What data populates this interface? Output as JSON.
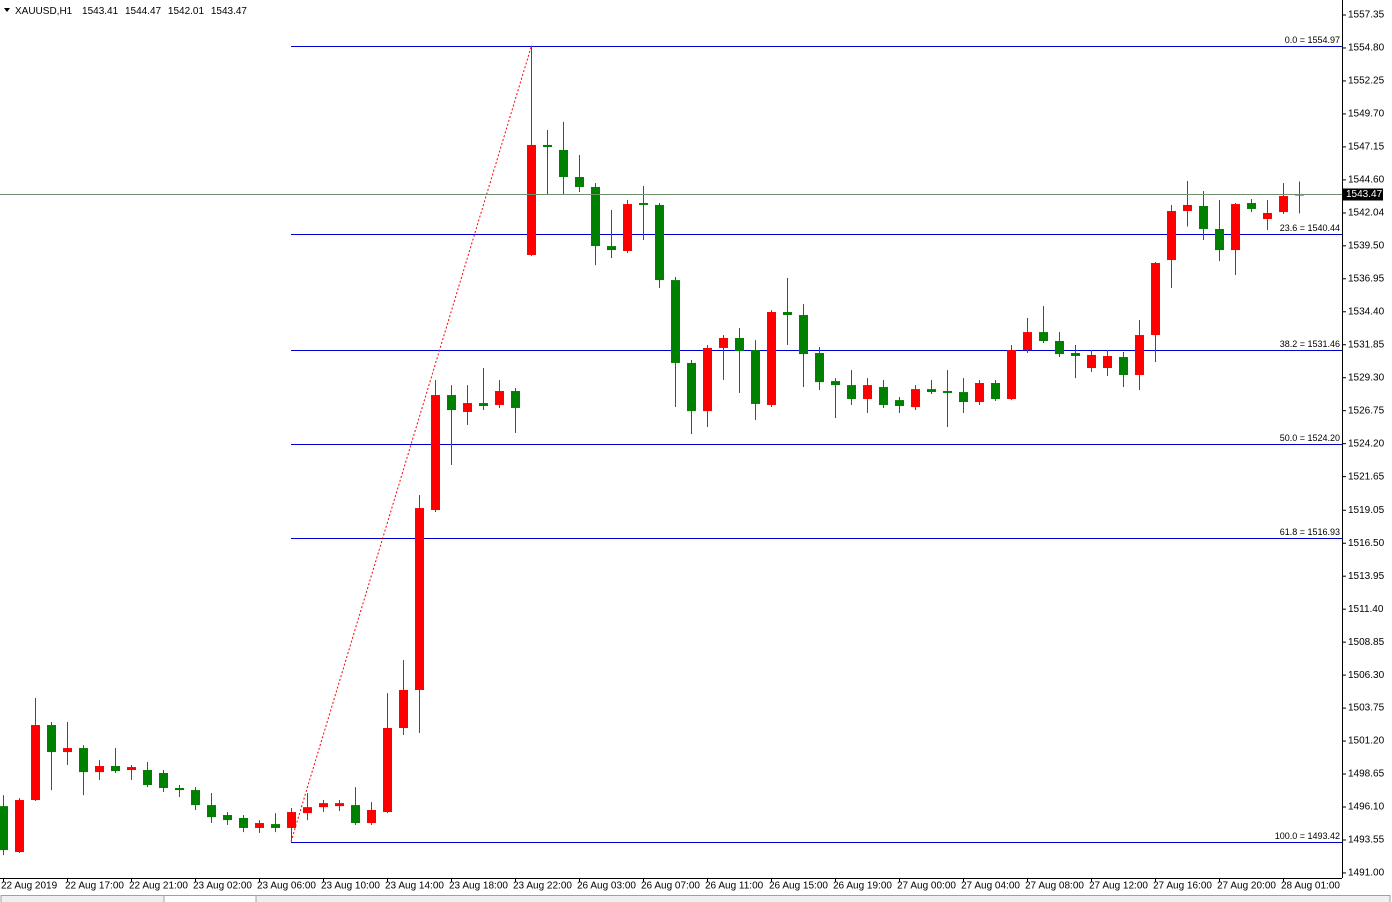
{
  "chart_data": {
    "type": "candlestick",
    "title": "XAUUSD,H1",
    "categories": [
      "22 Aug 2019",
      null,
      null,
      null,
      "22 Aug 17:00",
      null,
      null,
      null,
      "22 Aug 21:00",
      null,
      null,
      null,
      "23 Aug 02:00",
      null,
      null,
      null,
      "23 Aug 06:00",
      null,
      null,
      null,
      "23 Aug 10:00",
      null,
      null,
      null,
      "23 Aug 14:00",
      null,
      null,
      null,
      "23 Aug 18:00",
      null,
      null,
      null,
      "23 Aug 22:00",
      null,
      null,
      null,
      "26 Aug 03:00",
      null,
      null,
      null,
      "26 Aug 07:00",
      null,
      null,
      null,
      "26 Aug 11:00",
      null,
      null,
      null,
      "26 Aug 15:00",
      null,
      null,
      null,
      "26 Aug 19:00",
      null,
      null,
      null,
      "27 Aug 00:00",
      null,
      null,
      null,
      "27 Aug 04:00",
      null,
      null,
      null,
      "27 Aug 08:00",
      null,
      null,
      null,
      "27 Aug 12:00",
      null,
      null,
      null,
      "27 Aug 16:00",
      null,
      null,
      null,
      "27 Aug 20:00",
      null,
      null,
      null,
      "28 Aug 01:00",
      null
    ],
    "open": [
      1496.17,
      1492.62,
      1496.64,
      1502.44,
      1500.35,
      1500.66,
      1498.8,
      1499.27,
      1498.96,
      1498.96,
      1498.73,
      1497.57,
      1497.41,
      1496.25,
      1495.48,
      1495.25,
      1494.48,
      1494.78,
      1494.48,
      1495.63,
      1496.09,
      1496.17,
      1496.25,
      1494.86,
      1495.71,
      1502.21,
      1505.15,
      1519.07,
      1527.96,
      1526.65,
      1527.34,
      1527.19,
      1528.27,
      1538.79,
      1547.3,
      1546.91,
      1544.82,
      1544.05,
      1539.48,
      1539.1,
      1542.81,
      1542.66,
      1536.85,
      1530.44,
      1526.72,
      1531.6,
      1532.37,
      1531.44,
      1527.19,
      1534.38,
      1534.15,
      1531.21,
      1529.04,
      1528.73,
      1527.65,
      1528.58,
      1527.57,
      1527.03,
      1528.42,
      1528.27,
      1528.19,
      1527.42,
      1528.89,
      1527.65,
      1531.44,
      1532.83,
      1532.14,
      1531.21,
      1530.05,
      1530.05,
      1530.9,
      1529.51,
      1532.6,
      1538.4,
      1542.19,
      1542.58,
      1540.8,
      1539.17,
      1542.81,
      1541.57,
      1542.11,
      1543.41
    ],
    "high": [
      1497.02,
      1496.79,
      1504.53,
      1502.67,
      1502.67,
      1500.89,
      1499.73,
      1500.66,
      1499.35,
      1499.58,
      1498.96,
      1497.8,
      1497.64,
      1497.18,
      1495.71,
      1495.48,
      1495.09,
      1495.63,
      1496.02,
      1497.18,
      1496.64,
      1496.64,
      1497.64,
      1496.48,
      1504.91,
      1507.47,
      1520.23,
      1529.12,
      1528.73,
      1528.73,
      1530.05,
      1529.12,
      1528.5,
      1554.97,
      1548.46,
      1549.08,
      1546.52,
      1544.36,
      1542.27,
      1543.04,
      1544.13,
      1542.81,
      1537.09,
      1530.67,
      1531.83,
      1532.6,
      1533.14,
      1532.21,
      1534.53,
      1537.01,
      1534.99,
      1531.67,
      1529.27,
      1529.89,
      1529.27,
      1529.12,
      1527.81,
      1528.73,
      1529.12,
      1529.89,
      1529.27,
      1529.12,
      1529.12,
      1531.83,
      1533.92,
      1534.84,
      1532.83,
      1531.83,
      1531.44,
      1531.44,
      1531.29,
      1533.76,
      1538.25,
      1542.66,
      1544.51,
      1543.74,
      1543.04,
      1542.81,
      1543.12,
      1543.04,
      1544.36,
      1544.47
    ],
    "low": [
      1492.38,
      1492.54,
      1496.56,
      1497.41,
      1499.35,
      1497.02,
      1498.19,
      1498.73,
      1498.19,
      1497.64,
      1497.26,
      1496.87,
      1495.87,
      1494.86,
      1494.71,
      1494.16,
      1494.09,
      1494.16,
      1493.42,
      1495.09,
      1495.71,
      1495.79,
      1494.71,
      1494.71,
      1495.63,
      1501.67,
      1501.82,
      1518.91,
      1522.55,
      1525.64,
      1526.8,
      1526.96,
      1525.02,
      1538.71,
      1543.43,
      1543.43,
      1543.66,
      1538.01,
      1538.56,
      1538.94,
      1539.95,
      1536.24,
      1527.03,
      1524.95,
      1525.49,
      1529.12,
      1528.12,
      1526.03,
      1527.03,
      1531.83,
      1528.58,
      1528.35,
      1526.18,
      1527.19,
      1526.57,
      1526.96,
      1526.57,
      1526.8,
      1528.04,
      1525.49,
      1526.57,
      1527.19,
      1527.5,
      1527.57,
      1531.21,
      1531.98,
      1530.9,
      1529.27,
      1529.74,
      1529.43,
      1528.58,
      1528.35,
      1530.51,
      1536.24,
      1540.99,
      1539.95,
      1538.32,
      1537.24,
      1542.11,
      1540.72,
      1541.96,
      1542.01
    ],
    "close": [
      1492.77,
      1496.64,
      1502.44,
      1500.35,
      1500.66,
      1498.8,
      1499.27,
      1498.88,
      1499.19,
      1497.8,
      1497.57,
      1497.41,
      1496.25,
      1495.32,
      1495.09,
      1494.48,
      1494.86,
      1494.48,
      1495.71,
      1496.09,
      1496.4,
      1496.4,
      1494.86,
      1495.87,
      1502.21,
      1505.15,
      1519.22,
      1527.96,
      1526.8,
      1527.34,
      1527.11,
      1528.27,
      1526.96,
      1547.3,
      1547.14,
      1544.82,
      1544.05,
      1539.48,
      1539.17,
      1542.73,
      1542.66,
      1536.85,
      1530.44,
      1526.72,
      1531.6,
      1532.37,
      1531.36,
      1527.27,
      1534.38,
      1534.15,
      1531.13,
      1528.96,
      1528.73,
      1527.65,
      1528.73,
      1527.19,
      1527.11,
      1528.42,
      1528.19,
      1528.12,
      1527.42,
      1528.89,
      1527.65,
      1531.44,
      1532.83,
      1532.14,
      1531.13,
      1530.98,
      1531.06,
      1530.98,
      1529.51,
      1532.6,
      1538.17,
      1542.19,
      1542.66,
      1540.8,
      1539.17,
      1542.73,
      1542.35,
      1542.04,
      1543.35,
      1543.47
    ],
    "up_color": "#ff0000",
    "down_color": "#008000",
    "ylim": [
      1490.61,
      1558.51
    ],
    "yticks": [
      1557.35,
      {
        "value": 1554.8,
        "label": "1554.80"
      },
      1552.25,
      {
        "value": 1549.7,
        "label": "1549.70"
      },
      1547.15,
      {
        "value": 1544.6,
        "label": "1544.60"
      },
      1542.04,
      {
        "value": 1539.5,
        "label": "1539.50"
      },
      1536.95,
      {
        "value": 1534.4,
        "label": "1534.40"
      },
      1531.85,
      {
        "value": 1529.3,
        "label": "1529.30"
      },
      1526.75,
      {
        "value": 1524.2,
        "label": "1524.20"
      },
      1521.65,
      1519.05,
      {
        "value": 1516.5,
        "label": "1516.50"
      },
      1513.95,
      {
        "value": 1511.4,
        "label": "1511.40"
      },
      1508.85,
      {
        "value": 1506.3,
        "label": "1506.30"
      },
      1503.75,
      {
        "value": 1501.2,
        "label": "1501.20"
      },
      1498.65,
      {
        "value": 1496.1,
        "label": "1496.10"
      },
      1493.55,
      {
        "value": 1491,
        "label": "1491.00"
      }
    ],
    "fibonacci_color": "#0000cd",
    "fibonacci": [
      {
        "label": "0.0 = 1554.97",
        "value": 1554.97
      },
      {
        "label": "23.6 = 1540.44",
        "value": 1540.44
      },
      {
        "label": "38.2 = 1531.46",
        "value": 1531.46
      },
      {
        "label": "50.0 = 1524.20",
        "value": 1524.2
      },
      {
        "label": "61.8 = 1516.93",
        "value": 1516.93
      },
      {
        "label": "100.0 = 1493.42",
        "value": 1493.42
      }
    ]
  }
}
